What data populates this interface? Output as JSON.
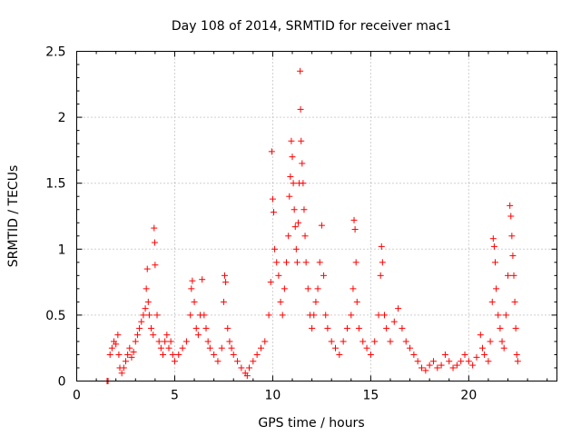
{
  "chart_data": {
    "type": "scatter",
    "title": "Day 108 of 2014, SRMTID for receiver mac1",
    "xlabel": "GPS time / hours",
    "ylabel": "SRMTID / TECUs",
    "xlim": [
      0,
      24.5
    ],
    "ylim": [
      0,
      2.5
    ],
    "xticks": [
      0,
      5,
      10,
      15,
      20
    ],
    "xtick_labels": [
      "0",
      "5",
      "10",
      "15",
      "20"
    ],
    "yticks": [
      0,
      0.5,
      1,
      1.5,
      2,
      2.5
    ],
    "ytick_labels": [
      "0",
      "0.5",
      "1",
      "1.5",
      "2",
      "2.5"
    ],
    "grid": true,
    "marker": "+",
    "color": "#ff0000",
    "series": [
      {
        "name": "mac1",
        "points": [
          [
            1.55,
            0.0
          ],
          [
            1.6,
            0.0
          ],
          [
            1.7,
            0.2
          ],
          [
            1.8,
            0.25
          ],
          [
            1.9,
            0.3
          ],
          [
            2.0,
            0.28
          ],
          [
            2.1,
            0.35
          ],
          [
            2.15,
            0.2
          ],
          [
            2.2,
            0.1
          ],
          [
            2.3,
            0.06
          ],
          [
            2.4,
            0.1
          ],
          [
            2.5,
            0.15
          ],
          [
            2.6,
            0.2
          ],
          [
            2.7,
            0.25
          ],
          [
            2.8,
            0.18
          ],
          [
            2.9,
            0.22
          ],
          [
            3.0,
            0.3
          ],
          [
            3.1,
            0.35
          ],
          [
            3.2,
            0.4
          ],
          [
            3.3,
            0.45
          ],
          [
            3.4,
            0.5
          ],
          [
            3.5,
            0.55
          ],
          [
            3.55,
            0.7
          ],
          [
            3.6,
            0.85
          ],
          [
            3.65,
            0.6
          ],
          [
            3.7,
            0.5
          ],
          [
            3.8,
            0.4
          ],
          [
            3.9,
            0.35
          ],
          [
            3.95,
            1.16
          ],
          [
            3.98,
            1.05
          ],
          [
            4.0,
            0.88
          ],
          [
            4.1,
            0.5
          ],
          [
            4.2,
            0.3
          ],
          [
            4.3,
            0.25
          ],
          [
            4.4,
            0.2
          ],
          [
            4.5,
            0.3
          ],
          [
            4.6,
            0.35
          ],
          [
            4.7,
            0.25
          ],
          [
            4.8,
            0.3
          ],
          [
            4.9,
            0.2
          ],
          [
            5.0,
            0.15
          ],
          [
            5.2,
            0.2
          ],
          [
            5.4,
            0.25
          ],
          [
            5.6,
            0.3
          ],
          [
            5.8,
            0.5
          ],
          [
            5.85,
            0.7
          ],
          [
            5.9,
            0.76
          ],
          [
            6.0,
            0.6
          ],
          [
            6.1,
            0.4
          ],
          [
            6.2,
            0.35
          ],
          [
            6.3,
            0.5
          ],
          [
            6.4,
            0.77
          ],
          [
            6.5,
            0.5
          ],
          [
            6.6,
            0.4
          ],
          [
            6.7,
            0.3
          ],
          [
            6.8,
            0.25
          ],
          [
            7.0,
            0.2
          ],
          [
            7.2,
            0.15
          ],
          [
            7.4,
            0.25
          ],
          [
            7.5,
            0.6
          ],
          [
            7.55,
            0.8
          ],
          [
            7.6,
            0.75
          ],
          [
            7.7,
            0.4
          ],
          [
            7.8,
            0.3
          ],
          [
            7.9,
            0.25
          ],
          [
            8.0,
            0.2
          ],
          [
            8.2,
            0.15
          ],
          [
            8.4,
            0.1
          ],
          [
            8.6,
            0.06
          ],
          [
            8.7,
            0.04
          ],
          [
            8.8,
            0.1
          ],
          [
            9.0,
            0.15
          ],
          [
            9.2,
            0.2
          ],
          [
            9.4,
            0.25
          ],
          [
            9.6,
            0.3
          ],
          [
            9.8,
            0.5
          ],
          [
            9.9,
            0.75
          ],
          [
            9.95,
            1.74
          ],
          [
            10.0,
            1.38
          ],
          [
            10.05,
            1.28
          ],
          [
            10.1,
            1.0
          ],
          [
            10.2,
            0.9
          ],
          [
            10.3,
            0.8
          ],
          [
            10.4,
            0.6
          ],
          [
            10.5,
            0.5
          ],
          [
            10.6,
            0.7
          ],
          [
            10.7,
            0.9
          ],
          [
            10.8,
            1.1
          ],
          [
            10.85,
            1.4
          ],
          [
            10.9,
            1.55
          ],
          [
            10.95,
            1.82
          ],
          [
            11.0,
            1.7
          ],
          [
            11.05,
            1.5
          ],
          [
            11.1,
            1.3
          ],
          [
            11.15,
            1.17
          ],
          [
            11.2,
            1.0
          ],
          [
            11.25,
            0.9
          ],
          [
            11.3,
            1.2
          ],
          [
            11.35,
            1.5
          ],
          [
            11.4,
            2.35
          ],
          [
            11.42,
            2.06
          ],
          [
            11.45,
            1.82
          ],
          [
            11.5,
            1.65
          ],
          [
            11.55,
            1.5
          ],
          [
            11.6,
            1.3
          ],
          [
            11.65,
            1.1
          ],
          [
            11.7,
            0.9
          ],
          [
            11.8,
            0.7
          ],
          [
            11.9,
            0.5
          ],
          [
            12.0,
            0.4
          ],
          [
            12.1,
            0.5
          ],
          [
            12.2,
            0.6
          ],
          [
            12.3,
            0.7
          ],
          [
            12.4,
            0.9
          ],
          [
            12.5,
            1.18
          ],
          [
            12.6,
            0.8
          ],
          [
            12.7,
            0.5
          ],
          [
            12.8,
            0.4
          ],
          [
            13.0,
            0.3
          ],
          [
            13.2,
            0.25
          ],
          [
            13.4,
            0.2
          ],
          [
            13.6,
            0.3
          ],
          [
            13.8,
            0.4
          ],
          [
            14.0,
            0.5
          ],
          [
            14.1,
            0.7
          ],
          [
            14.15,
            1.22
          ],
          [
            14.2,
            1.15
          ],
          [
            14.25,
            0.9
          ],
          [
            14.3,
            0.6
          ],
          [
            14.4,
            0.4
          ],
          [
            14.6,
            0.3
          ],
          [
            14.8,
            0.25
          ],
          [
            15.0,
            0.2
          ],
          [
            15.2,
            0.3
          ],
          [
            15.4,
            0.5
          ],
          [
            15.5,
            0.8
          ],
          [
            15.55,
            1.02
          ],
          [
            15.6,
            0.9
          ],
          [
            15.7,
            0.5
          ],
          [
            15.8,
            0.4
          ],
          [
            16.0,
            0.3
          ],
          [
            16.2,
            0.45
          ],
          [
            16.4,
            0.55
          ],
          [
            16.6,
            0.4
          ],
          [
            16.8,
            0.3
          ],
          [
            17.0,
            0.25
          ],
          [
            17.2,
            0.2
          ],
          [
            17.4,
            0.15
          ],
          [
            17.6,
            0.1
          ],
          [
            17.8,
            0.08
          ],
          [
            18.0,
            0.12
          ],
          [
            18.2,
            0.15
          ],
          [
            18.4,
            0.1
          ],
          [
            18.6,
            0.12
          ],
          [
            18.8,
            0.2
          ],
          [
            19.0,
            0.15
          ],
          [
            19.2,
            0.1
          ],
          [
            19.4,
            0.12
          ],
          [
            19.6,
            0.15
          ],
          [
            19.8,
            0.2
          ],
          [
            20.0,
            0.15
          ],
          [
            20.2,
            0.12
          ],
          [
            20.4,
            0.18
          ],
          [
            20.6,
            0.35
          ],
          [
            20.7,
            0.25
          ],
          [
            20.8,
            0.2
          ],
          [
            21.0,
            0.15
          ],
          [
            21.1,
            0.3
          ],
          [
            21.2,
            0.6
          ],
          [
            21.25,
            1.08
          ],
          [
            21.3,
            1.02
          ],
          [
            21.35,
            0.9
          ],
          [
            21.4,
            0.7
          ],
          [
            21.5,
            0.5
          ],
          [
            21.6,
            0.4
          ],
          [
            21.7,
            0.3
          ],
          [
            21.8,
            0.25
          ],
          [
            21.9,
            0.5
          ],
          [
            22.0,
            0.8
          ],
          [
            22.1,
            1.33
          ],
          [
            22.15,
            1.25
          ],
          [
            22.2,
            1.1
          ],
          [
            22.25,
            0.95
          ],
          [
            22.3,
            0.8
          ],
          [
            22.35,
            0.6
          ],
          [
            22.4,
            0.4
          ],
          [
            22.45,
            0.2
          ],
          [
            22.5,
            0.15
          ]
        ]
      }
    ]
  }
}
